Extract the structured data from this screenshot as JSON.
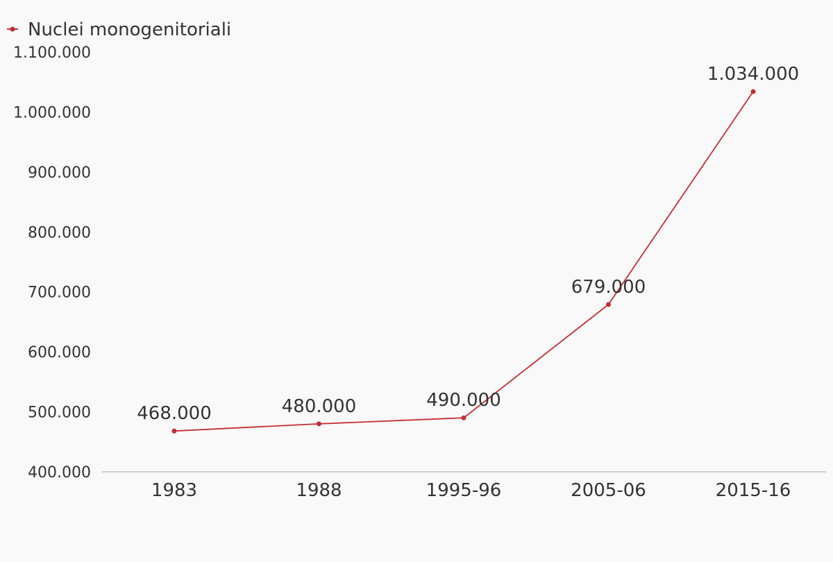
{
  "chart_data": {
    "type": "line",
    "categories": [
      "1983",
      "1988",
      "1995-96",
      "2005-06",
      "2015-16"
    ],
    "series": [
      {
        "name": "Nuclei monogenitoriali",
        "values": [
          468000,
          480000,
          490000,
          679000,
          1034000
        ],
        "data_labels": [
          "468.000",
          "480.000",
          "490.000",
          "679.000",
          "1.034.000"
        ],
        "color": "#c62d33"
      }
    ],
    "y_ticks": [
      {
        "value": 400000,
        "label": "400.000"
      },
      {
        "value": 500000,
        "label": "500.000"
      },
      {
        "value": 600000,
        "label": "600.000"
      },
      {
        "value": 700000,
        "label": "700.000"
      },
      {
        "value": 800000,
        "label": "800.000"
      },
      {
        "value": 900000,
        "label": "900.000"
      },
      {
        "value": 1000000,
        "label": "1.000.000"
      },
      {
        "value": 1100000,
        "label": "1.100.000"
      }
    ],
    "ylim": [
      400000,
      1100000
    ],
    "grid": false,
    "legend_position": "top-left",
    "axis_color": "#cccccc"
  }
}
